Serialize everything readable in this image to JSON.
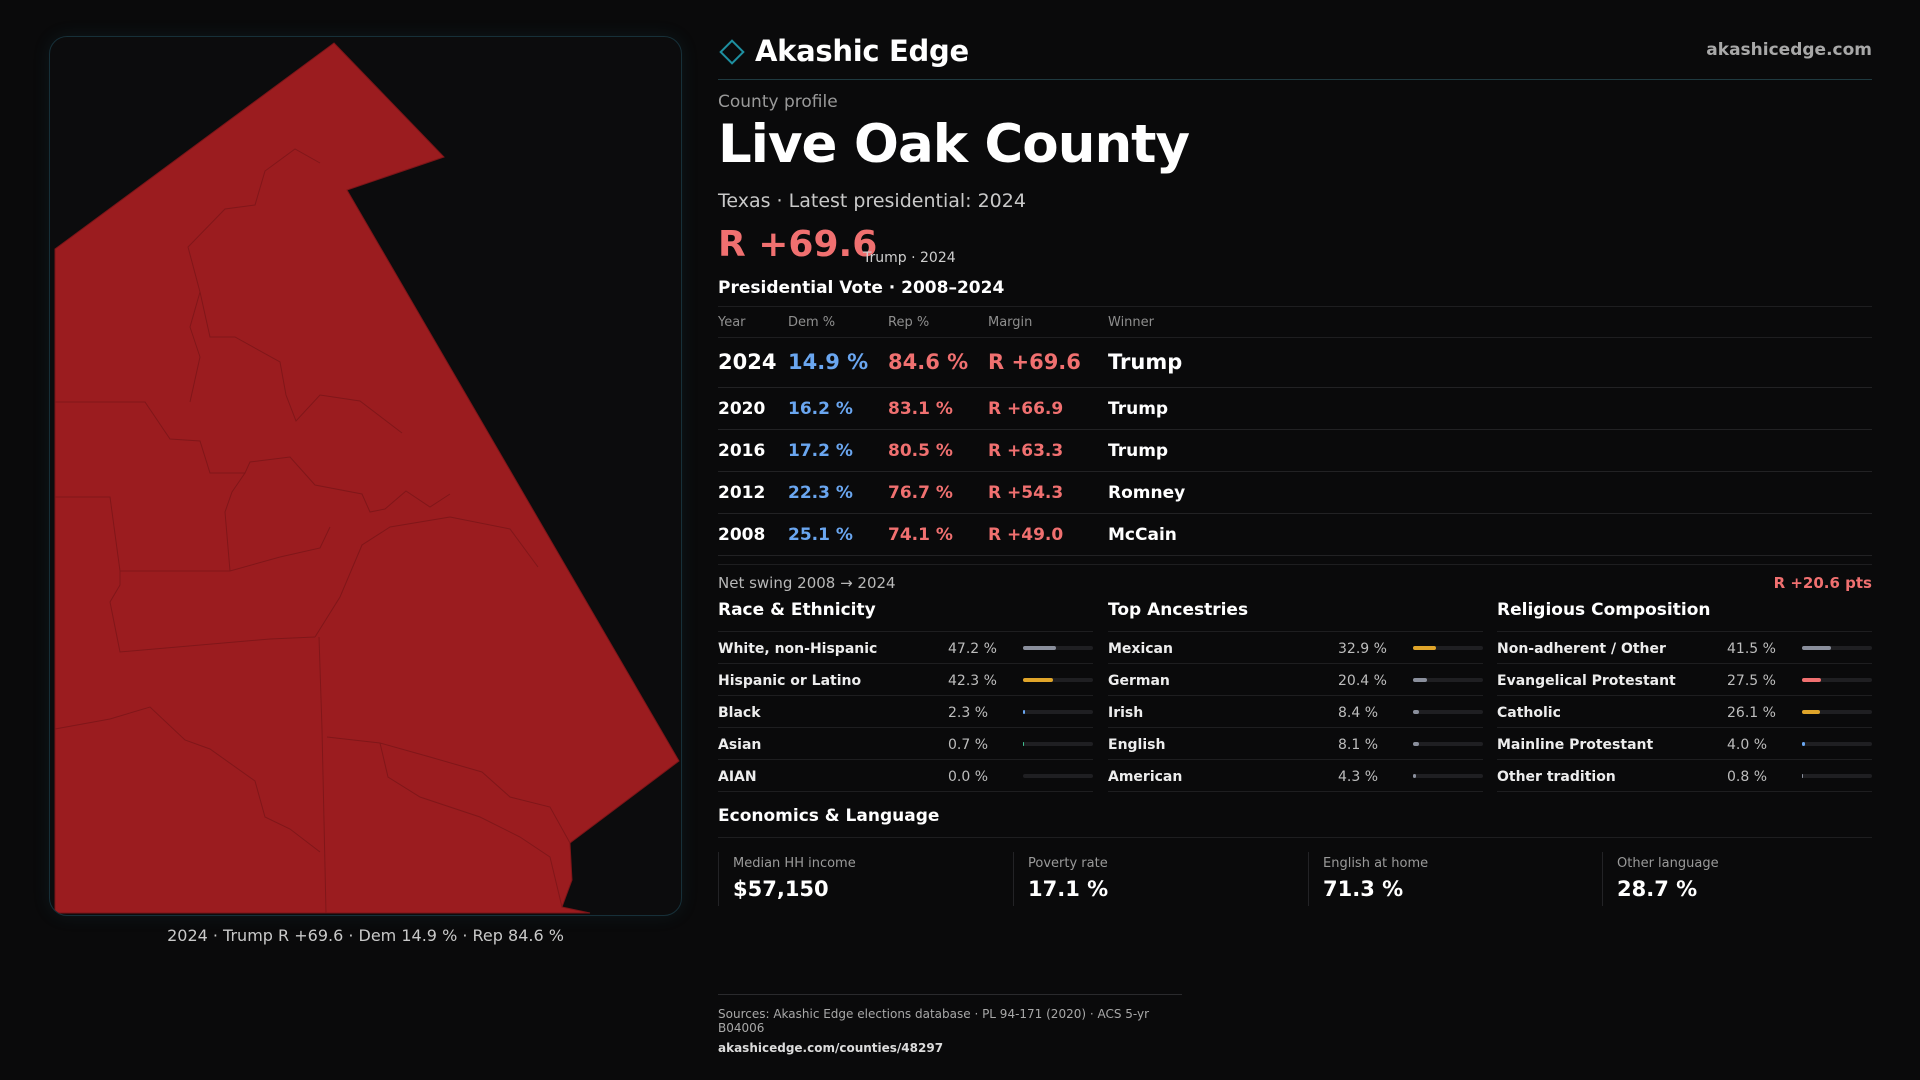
{
  "brand": {
    "name": "Akashic Edge",
    "url": "akashicedge.com"
  },
  "county": {
    "eyebrow": "County profile",
    "name": "Live Oak County",
    "subtitle": "Texas · Latest presidential: 2024",
    "margin": "R +69.6",
    "margin_note": "Trump · 2024"
  },
  "map": {
    "caption": "2024 · Trump R +69.6 · Dem 14.9 % · Rep 84.6 %",
    "fill_color": "#9b1c1f"
  },
  "vote": {
    "title": "Presidential Vote · 2008–2024",
    "headers": [
      "Year",
      "Dem %",
      "Rep %",
      "Margin",
      "Winner"
    ],
    "rows": [
      {
        "year": "2024",
        "dem": "14.9 %",
        "rep": "84.6 %",
        "margin": "R +69.6",
        "winner": "Trump"
      },
      {
        "year": "2020",
        "dem": "16.2 %",
        "rep": "83.1 %",
        "margin": "R +66.9",
        "winner": "Trump"
      },
      {
        "year": "2016",
        "dem": "17.2 %",
        "rep": "80.5 %",
        "margin": "R +63.3",
        "winner": "Trump"
      },
      {
        "year": "2012",
        "dem": "22.3 %",
        "rep": "76.7 %",
        "margin": "R +54.3",
        "winner": "Romney"
      },
      {
        "year": "2008",
        "dem": "25.1 %",
        "rep": "74.1 %",
        "margin": "R +49.0",
        "winner": "McCain"
      }
    ],
    "swing_label": "Net swing 2008 → 2024",
    "swing_value": "R +20.6 pts"
  },
  "race": {
    "title": "Race & Ethnicity",
    "rows": [
      {
        "label": "White, non-Hispanic",
        "pct": "47.2 %",
        "value": 47.2,
        "color": "#8a8f9c"
      },
      {
        "label": "Hispanic or Latino",
        "pct": "42.3 %",
        "value": 42.3,
        "color": "#e0a52a"
      },
      {
        "label": "Black",
        "pct": "2.3 %",
        "value": 2.3,
        "color": "#6aa6f0"
      },
      {
        "label": "Asian",
        "pct": "0.7 %",
        "value": 0.7,
        "color": "#3fbf8f"
      },
      {
        "label": "AIAN",
        "pct": "0.0 %",
        "value": 0.0,
        "color": "#8a8f9c"
      }
    ]
  },
  "ancestry": {
    "title": "Top Ancestries",
    "rows": [
      {
        "label": "Mexican",
        "pct": "32.9 %",
        "value": 32.9,
        "color": "#e0a52a"
      },
      {
        "label": "German",
        "pct": "20.4 %",
        "value": 20.4,
        "color": "#8a8f9c"
      },
      {
        "label": "Irish",
        "pct": "8.4 %",
        "value": 8.4,
        "color": "#8a8f9c"
      },
      {
        "label": "English",
        "pct": "8.1 %",
        "value": 8.1,
        "color": "#8a8f9c"
      },
      {
        "label": "American",
        "pct": "4.3 %",
        "value": 4.3,
        "color": "#8a8f9c"
      }
    ]
  },
  "religion": {
    "title": "Religious Composition",
    "rows": [
      {
        "label": "Non-adherent / Other",
        "pct": "41.5 %",
        "value": 41.5,
        "color": "#8a8f9c"
      },
      {
        "label": "Evangelical Protestant",
        "pct": "27.5 %",
        "value": 27.5,
        "color": "#f07070"
      },
      {
        "label": "Catholic",
        "pct": "26.1 %",
        "value": 26.1,
        "color": "#e0a52a"
      },
      {
        "label": "Mainline Protestant",
        "pct": "4.0 %",
        "value": 4.0,
        "color": "#6aa6f0"
      },
      {
        "label": "Other tradition",
        "pct": "0.8 %",
        "value": 0.8,
        "color": "#8a8f9c"
      }
    ]
  },
  "economics": {
    "title": "Economics & Language",
    "cards": [
      {
        "label": "Median HH income",
        "value": "$57,150"
      },
      {
        "label": "Poverty rate",
        "value": "17.1 %"
      },
      {
        "label": "English at home",
        "value": "71.3 %"
      },
      {
        "label": "Other language",
        "value": "28.7 %"
      }
    ]
  },
  "footer": {
    "sources": "Sources: Akashic Edge elections database · PL 94-171 (2020) · ACS 5-yr B04006",
    "url": "akashicedge.com/counties/48297"
  },
  "colors": {
    "dem": "#6aa6f0",
    "rep": "#f07070",
    "accent": "#1e8fa0",
    "background": "#0a0a0b"
  }
}
